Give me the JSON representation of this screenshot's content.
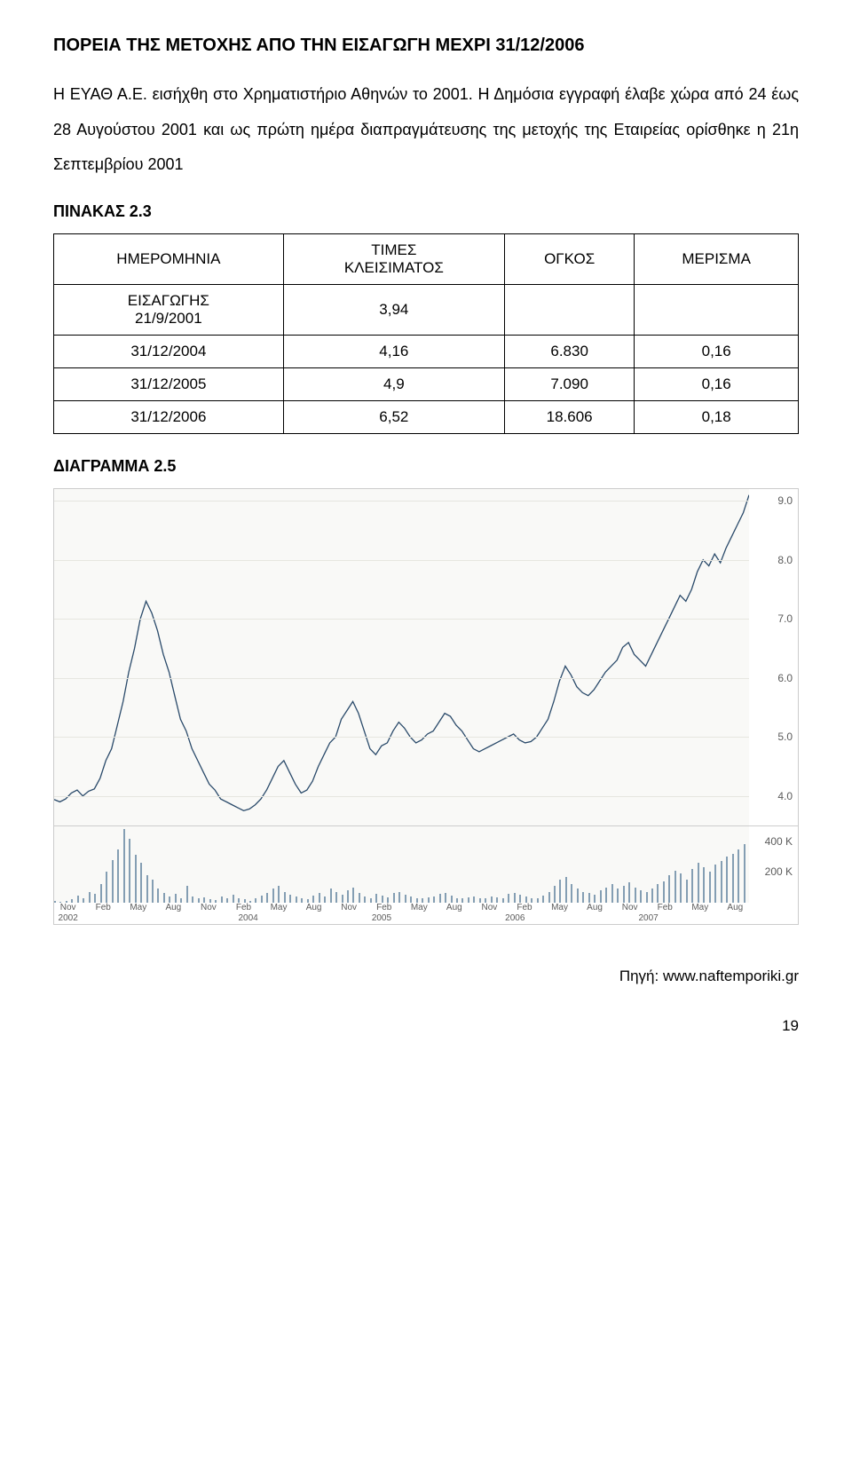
{
  "heading": "ΠΟΡΕΙΑ ΤΗΣ ΜΕΤΟΧΗΣ ΑΠΟ ΤΗΝ ΕΙΣΑΓΩΓΗ ΜΕΧΡΙ 31/12/2006",
  "paragraph": "Η ΕΥΑΘ Α.Ε. εισήχθη στο Χρηματιστήριο Αθηνών το 2001. Η Δημόσια εγγραφή έλαβε χώρα από 24 έως 28 Αυγούστου 2001 και ως πρώτη ημέρα διαπραγμάτευσης της μετοχής της Εταιρείας ορίσθηκε η 21η Σεπτεμβρίου 2001",
  "table_label": "ΠΙΝΑΚΑΣ 2.3",
  "table": {
    "columns": [
      "ΗΜΕΡΟΜΗΝΙΑ",
      "ΤΙΜΕΣ ΚΛΕΙΣΙΜΑΤΟΣ",
      "ΟΓΚΟΣ",
      "ΜΕΡΙΣΜΑ"
    ],
    "rows": [
      [
        "ΕΙΣΑΓΩΓΗΣ 21/9/2001",
        "3,94",
        "",
        ""
      ],
      [
        "31/12/2004",
        "4,16",
        "6.830",
        "0,16"
      ],
      [
        "31/12/2005",
        "4,9",
        "7.090",
        "0,16"
      ],
      [
        "31/12/2006",
        "6,52",
        "18.606",
        "0,18"
      ]
    ]
  },
  "diagram_label": "ΔΙΑΓΡΑΜΜΑ 2.5",
  "price_chart": {
    "ylim": [
      3.5,
      9.2
    ],
    "yticks": [
      4.0,
      5.0,
      6.0,
      7.0,
      8.0,
      9.0
    ],
    "ytick_labels": [
      "4.0",
      "5.0",
      "6.0",
      "7.0",
      "8.0",
      "9.0"
    ],
    "bg_color": "#f9f9f7",
    "grid_color": "#e6e6e0",
    "line_color": "#2a4a6a",
    "line_width": 1.3,
    "data": [
      3.94,
      3.9,
      3.95,
      4.05,
      4.1,
      4.0,
      4.08,
      4.12,
      4.3,
      4.6,
      4.8,
      5.2,
      5.6,
      6.1,
      6.5,
      7.0,
      7.3,
      7.1,
      6.8,
      6.4,
      6.1,
      5.7,
      5.3,
      5.1,
      4.8,
      4.6,
      4.4,
      4.2,
      4.1,
      3.95,
      3.9,
      3.85,
      3.8,
      3.75,
      3.78,
      3.85,
      3.95,
      4.1,
      4.3,
      4.5,
      4.6,
      4.4,
      4.2,
      4.05,
      4.1,
      4.25,
      4.5,
      4.7,
      4.9,
      5.0,
      5.3,
      5.45,
      5.6,
      5.4,
      5.1,
      4.8,
      4.7,
      4.85,
      4.9,
      5.1,
      5.25,
      5.15,
      5.0,
      4.9,
      4.95,
      5.05,
      5.1,
      5.25,
      5.4,
      5.35,
      5.2,
      5.1,
      4.95,
      4.8,
      4.75,
      4.8,
      4.85,
      4.9,
      4.95,
      5.0,
      5.05,
      4.95,
      4.9,
      4.92,
      5.0,
      5.15,
      5.3,
      5.6,
      5.95,
      6.2,
      6.05,
      5.85,
      5.75,
      5.7,
      5.8,
      5.95,
      6.1,
      6.2,
      6.3,
      6.52,
      6.6,
      6.4,
      6.3,
      6.2,
      6.4,
      6.6,
      6.8,
      7.0,
      7.2,
      7.4,
      7.3,
      7.5,
      7.8,
      8.0,
      7.9,
      8.1,
      7.95,
      8.2,
      8.4,
      8.6,
      8.8,
      9.1
    ]
  },
  "volume_chart": {
    "ylim": [
      0,
      500
    ],
    "yticks": [
      200,
      400
    ],
    "ytick_labels": [
      "200 K",
      "400 K"
    ],
    "bg_color": "#f9f9f7",
    "bar_color": "#849eb3",
    "data": [
      10,
      5,
      8,
      20,
      45,
      30,
      70,
      55,
      120,
      200,
      280,
      350,
      480,
      420,
      310,
      260,
      180,
      150,
      90,
      60,
      40,
      55,
      30,
      110,
      40,
      25,
      35,
      22,
      15,
      40,
      25,
      50,
      30,
      20,
      10,
      25,
      45,
      60,
      90,
      110,
      70,
      50,
      40,
      30,
      20,
      45,
      60,
      40,
      90,
      70,
      50,
      80,
      100,
      60,
      40,
      30,
      55,
      45,
      35,
      60,
      70,
      50,
      40,
      30,
      25,
      35,
      40,
      55,
      60,
      45,
      30,
      25,
      35,
      40,
      30,
      25,
      40,
      35,
      30,
      55,
      65,
      50,
      40,
      30,
      25,
      45,
      70,
      110,
      150,
      170,
      120,
      90,
      70,
      60,
      50,
      80,
      100,
      120,
      90,
      110,
      130,
      95,
      80,
      70,
      90,
      120,
      140,
      180,
      210,
      190,
      150,
      220,
      260,
      230,
      200,
      250,
      270,
      300,
      320,
      350,
      380,
      420
    ]
  },
  "xaxis": {
    "months": [
      "Nov",
      "Feb",
      "May",
      "Aug",
      "Nov",
      "Feb",
      "May",
      "Aug",
      "Nov",
      "Feb",
      "May",
      "Aug",
      "Nov",
      "Feb",
      "May",
      "Aug",
      "Nov",
      "Feb",
      "May",
      "Aug"
    ],
    "years": [
      {
        "label": "2002",
        "pos": 0.0
      },
      {
        "label": "2004",
        "pos": 0.27
      },
      {
        "label": "2005",
        "pos": 0.47
      },
      {
        "label": "2006",
        "pos": 0.67
      },
      {
        "label": "2007",
        "pos": 0.87
      }
    ]
  },
  "source": "Πηγή: www.naftemporiki.gr",
  "page_number": "19"
}
